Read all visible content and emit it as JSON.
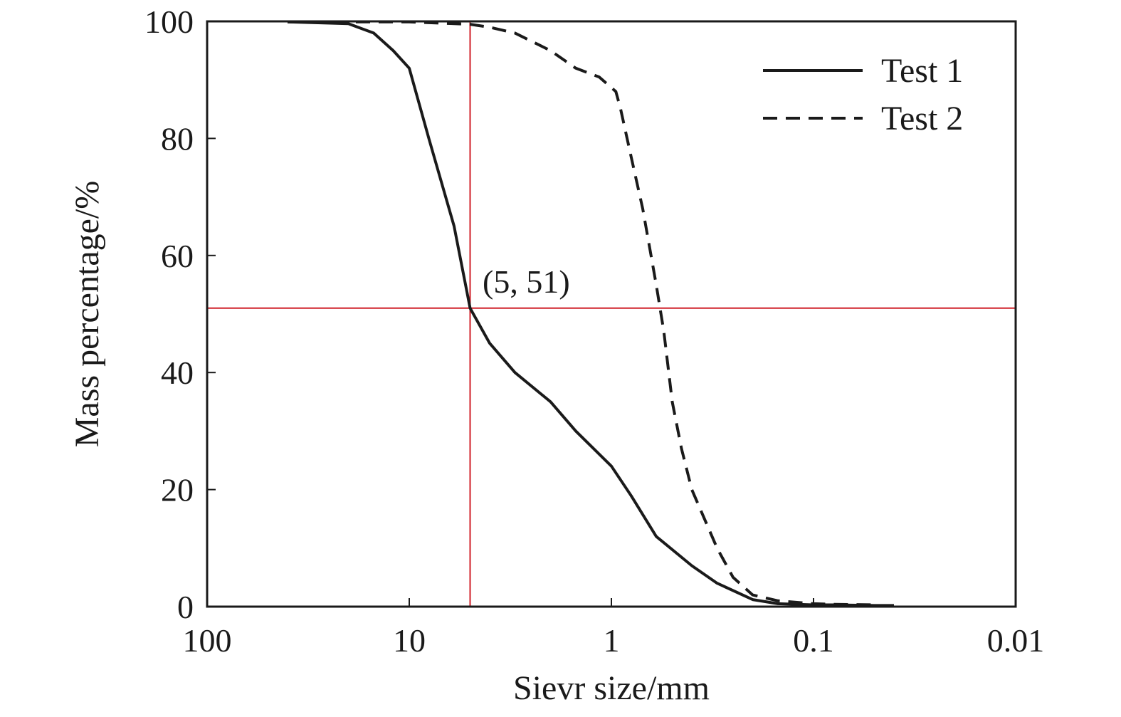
{
  "chart_data": {
    "type": "line",
    "xlabel": "Sievr size/mm",
    "ylabel": "Mass percentage/%",
    "x_scale": "log",
    "x_reversed": true,
    "xlim": [
      100,
      0.01
    ],
    "ylim": [
      0,
      100
    ],
    "x_ticks": [
      100,
      10,
      1,
      0.1,
      0.01
    ],
    "x_tick_labels": [
      "100",
      "10",
      "1",
      "0.1",
      "0.01"
    ],
    "y_ticks": [
      0,
      20,
      40,
      60,
      80,
      100
    ],
    "y_tick_labels": [
      "0",
      "20",
      "40",
      "60",
      "80",
      "100"
    ],
    "grid": false,
    "legend_position": "top-right",
    "series": [
      {
        "name": "Test 1",
        "style": "solid",
        "color": "#1a1a1a",
        "x": [
          40,
          20,
          15,
          12,
          10,
          8,
          6,
          5,
          4,
          3,
          2,
          1.5,
          1,
          0.8,
          0.6,
          0.4,
          0.3,
          0.2,
          0.15,
          0.1,
          0.08,
          0.05,
          0.04
        ],
        "y": [
          99.9,
          99.6,
          98,
          95,
          92,
          80,
          65,
          51,
          45,
          40,
          35,
          30,
          24,
          19,
          12,
          7,
          4,
          1.2,
          0.5,
          0.3,
          0.3,
          0.2,
          0.2
        ]
      },
      {
        "name": "Test 2",
        "style": "dashed",
        "color": "#1a1a1a",
        "x": [
          40,
          10,
          5,
          4,
          3,
          2,
          1.5,
          1.15,
          0.95,
          0.9,
          0.8,
          0.7,
          0.6,
          0.55,
          0.5,
          0.45,
          0.4,
          0.3,
          0.25,
          0.2,
          0.15,
          0.1,
          0.08,
          0.05
        ],
        "y": [
          99.9,
          99.9,
          99.5,
          99,
          98,
          95,
          92,
          90.5,
          88,
          85,
          77,
          68,
          55,
          47,
          35,
          27,
          20,
          10,
          5,
          2,
          1,
          0.5,
          0.4,
          0.3
        ]
      }
    ],
    "reference_lines": {
      "color": "#d0202a",
      "x_value": 5,
      "y_value": 51
    },
    "annotation": {
      "text": "(5, 51)"
    }
  }
}
